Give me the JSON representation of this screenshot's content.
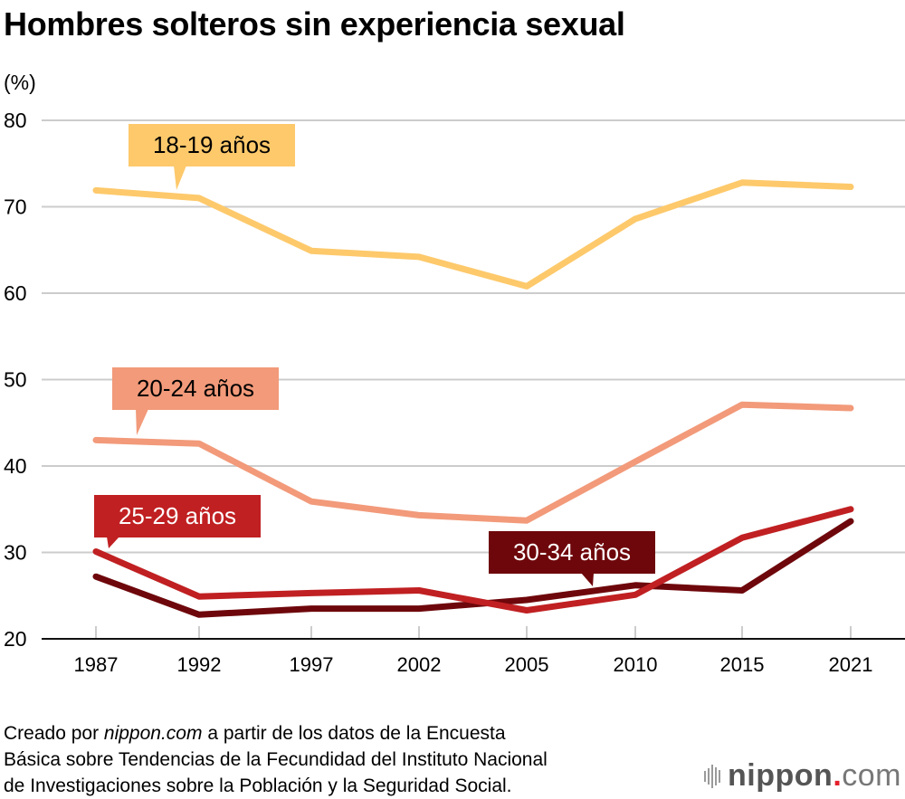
{
  "header": {
    "title": "Hombres solteros sin experiencia sexual",
    "unit": "(%)"
  },
  "chart_data": {
    "type": "line",
    "title": "Hombres solteros sin experiencia sexual",
    "xlabel": "",
    "ylabel": "(%)",
    "categories": [
      "1987",
      "1992",
      "1997",
      "2002",
      "2005",
      "2010",
      "2015",
      "2021"
    ],
    "yticks": [
      "20",
      "30",
      "40",
      "50",
      "60",
      "70",
      "80"
    ],
    "ylim": [
      20,
      80
    ],
    "grid": true,
    "legend": "inline-callouts",
    "series": [
      {
        "name": "18-19 años",
        "color": "#fdc96b",
        "text_color": "#000000",
        "values": [
          71.9,
          71.0,
          64.9,
          64.2,
          60.8,
          68.6,
          72.8,
          72.3
        ]
      },
      {
        "name": "20-24 años",
        "color": "#f29a7a",
        "text_color": "#000000",
        "values": [
          43.0,
          42.6,
          35.9,
          34.3,
          33.7,
          40.5,
          47.1,
          46.7
        ]
      },
      {
        "name": "25-29 años",
        "color": "#c02022",
        "text_color": "#ffffff",
        "values": [
          30.1,
          24.9,
          25.3,
          25.6,
          23.3,
          25.1,
          31.7,
          35.0
        ]
      },
      {
        "name": "30-34 años",
        "color": "#6e070b",
        "text_color": "#ffffff",
        "values": [
          27.2,
          22.8,
          23.5,
          23.5,
          24.5,
          26.2,
          25.6,
          33.6
        ]
      }
    ]
  },
  "footer": {
    "source_prefix": "Creado por ",
    "source_brand": "nippon.com",
    "source_line1_rest": " a partir de los datos de la Encuesta",
    "source_line2": "Básica sobre Tendencias de la Fecundidad del Instituto Nacional",
    "source_line3": "de Investigaciones sobre la Población y la Seguridad Social.",
    "logo_main": "nippon",
    "logo_dot": ".",
    "logo_suffix": "com"
  }
}
